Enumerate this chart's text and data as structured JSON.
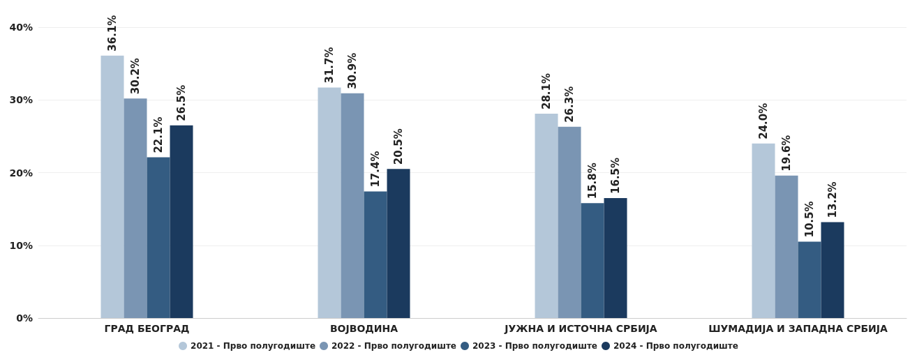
{
  "chart_data": {
    "type": "bar",
    "categories": [
      "ГРАД БЕОГРАД",
      "ВОЈВОДИНА",
      "ЈУЖНА И ИСТОЧНА СРБИЈА",
      "ШУМАДИЈА И ЗАПАДНА СРБИЈА"
    ],
    "series": [
      {
        "name": "2021 - Прво полугодиште",
        "color": "#b4c7d9",
        "values": [
          36.1,
          31.7,
          28.1,
          24.0
        ],
        "value_labels": [
          "36.1%",
          "31.7%",
          "28.1%",
          "24.0%"
        ]
      },
      {
        "name": "2022 - Прво полугодиште",
        "color": "#7a95b3",
        "values": [
          30.2,
          30.9,
          26.3,
          19.6
        ],
        "value_labels": [
          "30.2%",
          "30.9%",
          "26.3%",
          "19.6%"
        ]
      },
      {
        "name": "2023 - Прво полугодиште",
        "color": "#345c82",
        "values": [
          22.1,
          17.4,
          15.8,
          10.5
        ],
        "value_labels": [
          "22.1%",
          "17.4%",
          "15.8%",
          "10.5%"
        ]
      },
      {
        "name": "2024 - Прво полугодиште",
        "color": "#1b3a5e",
        "values": [
          26.5,
          20.5,
          16.5,
          13.2
        ],
        "value_labels": [
          "26.5%",
          "20.5%",
          "16.5%",
          "13.2%"
        ]
      }
    ],
    "ylim": [
      0,
      40
    ],
    "yticks": [
      {
        "value": 0,
        "label": "0%"
      },
      {
        "value": 10,
        "label": "10%"
      },
      {
        "value": 20,
        "label": "20%"
      },
      {
        "value": 30,
        "label": "30%"
      },
      {
        "value": 40,
        "label": "40%"
      }
    ],
    "grid": "y",
    "legend": "bottom"
  }
}
